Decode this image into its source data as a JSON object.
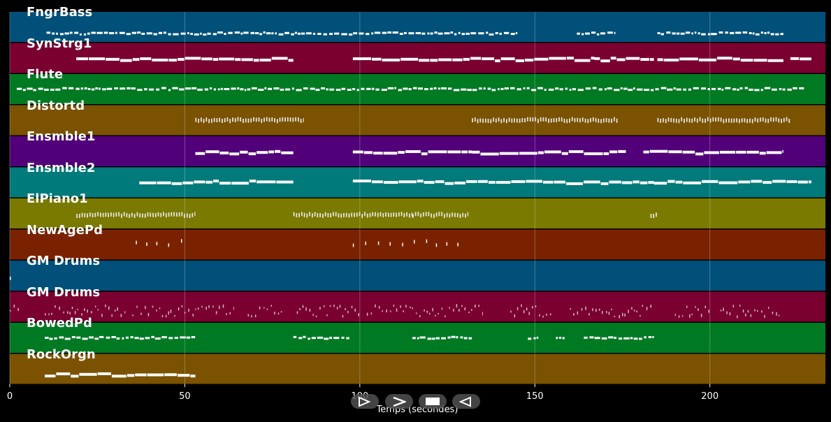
{
  "axis": {
    "xlabel": "Temps (secondes)",
    "xmax": 233,
    "ticks": [
      0,
      50,
      100,
      150,
      200
    ]
  },
  "controls": [
    {
      "name": "play-icon",
      "glyph": "play"
    },
    {
      "name": "fast-forward-icon",
      "glyph": "ff"
    },
    {
      "name": "stop-icon",
      "glyph": "stop"
    },
    {
      "name": "rewind-icon",
      "glyph": "rew"
    }
  ],
  "tracks": [
    {
      "name": "FngrBass",
      "color": "#00507a",
      "segments": [
        [
          10.5,
          145
        ],
        [
          162,
          173
        ],
        [
          185,
          221
        ]
      ],
      "level": 0.72,
      "style": "notes"
    },
    {
      "name": "SynStrg1",
      "color": "#7a0030",
      "segments": [
        [
          19,
          81
        ],
        [
          98,
          167
        ],
        [
          167,
          184
        ],
        [
          185,
          221
        ],
        [
          223,
          229
        ]
      ],
      "level": 0.55,
      "style": "bars"
    },
    {
      "name": "Flute",
      "color": "#007a22",
      "segments": [
        [
          2,
          227
        ]
      ],
      "level": 0.5,
      "style": "notes"
    },
    {
      "name": "Distortd",
      "color": "#7a5200",
      "segments": [
        [
          53,
          84
        ],
        [
          132,
          174
        ],
        [
          185,
          223
        ]
      ],
      "level": 0.5,
      "style": "dense"
    },
    {
      "name": "Ensmble1",
      "color": "#52007a",
      "segments": [
        [
          53,
          81
        ],
        [
          98,
          132
        ],
        [
          132,
          176
        ],
        [
          181,
          221
        ]
      ],
      "level": 0.55,
      "style": "bars"
    },
    {
      "name": "Ensmble2",
      "color": "#007a7a",
      "segments": [
        [
          37,
          81
        ],
        [
          98,
          184
        ],
        [
          184,
          229
        ]
      ],
      "level": 0.5,
      "style": "bars"
    },
    {
      "name": "ElPiano1",
      "color": "#7a7a00",
      "segments": [
        [
          19,
          53
        ],
        [
          81,
          115
        ],
        [
          115,
          131
        ],
        [
          183,
          185
        ]
      ],
      "level": 0.55,
      "style": "dense"
    },
    {
      "name": "NewAgePd",
      "color": "#7a2200",
      "segments": [
        [
          36,
          52
        ],
        [
          98,
          131
        ]
      ],
      "level": 0.45,
      "style": "sparse"
    },
    {
      "name": "GM Drums",
      "color": "#00507a",
      "segments": [
        [
          0,
          1
        ]
      ],
      "level": 0.65,
      "style": "sparse"
    },
    {
      "name": "GM Drums",
      "color": "#7a0030",
      "segments": [
        [
          0,
          3
        ],
        [
          10,
          33
        ],
        [
          35,
          53
        ],
        [
          53,
          64
        ],
        [
          68,
          78
        ],
        [
          82,
          100
        ],
        [
          102,
          135
        ],
        [
          143,
          155
        ],
        [
          160,
          173
        ],
        [
          174,
          184
        ],
        [
          190,
          200
        ],
        [
          203,
          220
        ]
      ],
      "level": 0.65,
      "style": "drums"
    },
    {
      "name": "BowedPd",
      "color": "#007a22",
      "segments": [
        [
          10,
          19
        ],
        [
          19,
          53
        ],
        [
          81,
          97
        ],
        [
          115,
          132
        ],
        [
          148,
          151
        ],
        [
          156,
          159
        ],
        [
          164,
          184
        ]
      ],
      "level": 0.5,
      "style": "notes"
    },
    {
      "name": "RockOrgn",
      "color": "#7a5200",
      "segments": [
        [
          10,
          53
        ]
      ],
      "level": 0.7,
      "style": "bars"
    }
  ]
}
